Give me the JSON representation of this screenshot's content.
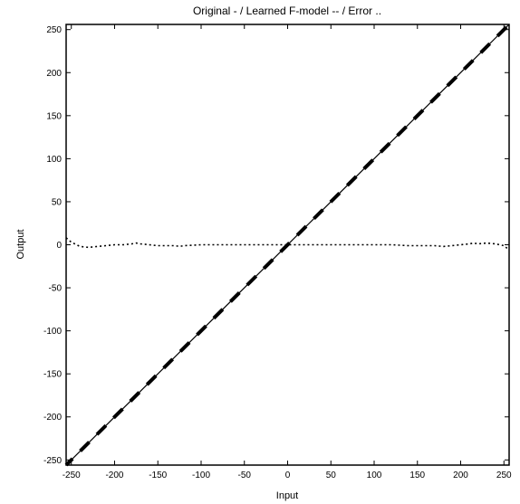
{
  "chart_data": {
    "type": "line",
    "title": "Original - / Learned F-model -- / Error ..",
    "xlabel": "Input",
    "ylabel": "Output",
    "xlim": [
      -256,
      256
    ],
    "ylim": [
      -256,
      256
    ],
    "xticks": [
      -250,
      -200,
      -150,
      -100,
      -50,
      0,
      50,
      100,
      150,
      200,
      250
    ],
    "yticks": [
      -250,
      -200,
      -150,
      -100,
      -50,
      0,
      50,
      100,
      150,
      200,
      250
    ],
    "grid": false,
    "series": [
      {
        "style": "solid-thin",
        "x": [
          -256,
          256
        ],
        "y": [
          -256,
          256
        ]
      },
      {
        "style": "dashed-thick",
        "x": [
          -256,
          256
        ],
        "y": [
          -256,
          256
        ]
      },
      {
        "style": "dotted",
        "x": [
          -256,
          -250,
          -240,
          -230,
          -220,
          -210,
          -200,
          -190,
          -180,
          -175,
          -170,
          -160,
          -150,
          -140,
          -130,
          -125,
          -120,
          -100,
          -80,
          -60,
          -40,
          -20,
          0,
          20,
          40,
          60,
          80,
          100,
          120,
          140,
          160,
          170,
          180,
          190,
          200,
          210,
          215,
          220,
          230,
          240,
          250,
          256
        ],
        "y": [
          8,
          3,
          -2,
          -3,
          -2,
          -1,
          0,
          0,
          1,
          2,
          1,
          0,
          -1,
          -1,
          -1,
          -2,
          -1,
          0,
          0,
          0,
          0,
          0,
          0,
          0,
          0,
          0,
          0,
          0,
          0,
          -1,
          -1,
          -1,
          -2,
          -1,
          0,
          1,
          2,
          1,
          2,
          1,
          -1,
          -6
        ]
      }
    ]
  }
}
